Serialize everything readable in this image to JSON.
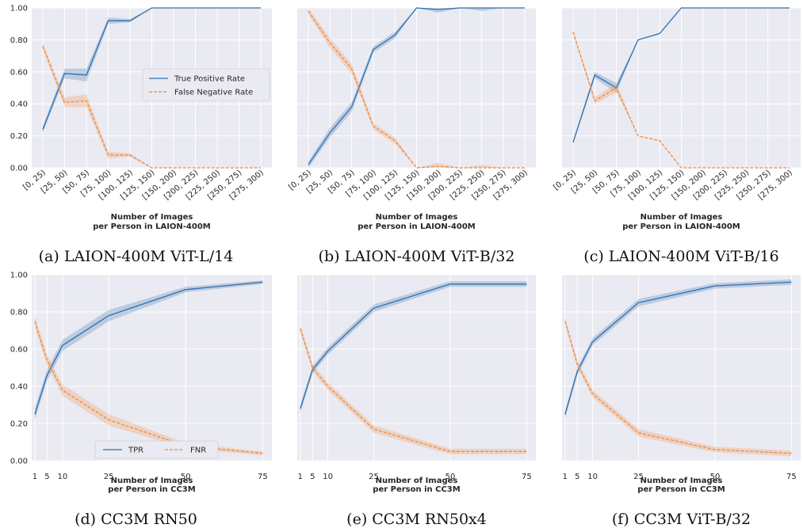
{
  "colors": {
    "tpr": "#2f6fad",
    "fnr": "#f08a3c",
    "panel_bg": "#eaeaf2",
    "grid": "#ffffff"
  },
  "chart_data": [
    {
      "type": "line",
      "caption": "(a) LAION-400M ViT-L/14",
      "xlabel": [
        "Number of Images",
        "per Person in LAION-400M"
      ],
      "x_axis": "categorical",
      "categories": [
        "[0, 25)",
        "[25, 50)",
        "[50, 75)",
        "[75, 100)",
        "[100, 125)",
        "[125, 150)",
        "[150, 200)",
        "[200, 225)",
        "[225, 250)",
        "[250, 275)",
        "[275, 300)"
      ],
      "ylim": [
        0,
        1
      ],
      "yticks": [
        "0.00",
        "0.20",
        "0.40",
        "0.60",
        "0.80",
        "1.00"
      ],
      "show_yticks": true,
      "grid": true,
      "legend": {
        "location": "center-right",
        "labels": [
          "True Positive Rate",
          "False Negative Rate"
        ]
      },
      "series": [
        {
          "name": "True Positive Rate",
          "style": "solid",
          "values": [
            0.24,
            0.59,
            0.58,
            0.92,
            0.92,
            1.0,
            1.0,
            1.0,
            1.0,
            1.0,
            1.0
          ],
          "band": [
            0.02,
            0.03,
            0.04,
            0.02,
            0.01,
            0.0,
            0.0,
            0.0,
            0.0,
            0.0,
            0.0
          ]
        },
        {
          "name": "False Negative Rate",
          "style": "dashed",
          "values": [
            0.76,
            0.41,
            0.42,
            0.08,
            0.08,
            0.0,
            0.0,
            0.0,
            0.0,
            0.0,
            0.0
          ],
          "band": [
            0.02,
            0.03,
            0.04,
            0.02,
            0.01,
            0.0,
            0.0,
            0.0,
            0.0,
            0.0,
            0.0
          ]
        }
      ]
    },
    {
      "type": "line",
      "caption": "(b) LAION-400M ViT-B/32",
      "xlabel": [
        "Number of Images",
        "per Person in LAION-400M"
      ],
      "x_axis": "categorical",
      "categories": [
        "[0, 25)",
        "[25, 50)",
        "[50, 75)",
        "[75, 100)",
        "[100, 125)",
        "[125, 150)",
        "[150, 200)",
        "[200, 225)",
        "[225, 250)",
        "[250, 275)",
        "[275, 300)"
      ],
      "ylim": [
        0,
        1
      ],
      "yticks": [
        "0.00",
        "0.20",
        "0.40",
        "0.60",
        "0.80",
        "1.00"
      ],
      "show_yticks": false,
      "grid": true,
      "series": [
        {
          "name": "True Positive Rate",
          "style": "solid",
          "values": [
            0.02,
            0.22,
            0.38,
            0.74,
            0.83,
            1.0,
            0.99,
            1.0,
            1.0,
            1.0,
            1.0
          ],
          "band": [
            0.02,
            0.03,
            0.03,
            0.02,
            0.02,
            0.0,
            0.02,
            0.0,
            0.02,
            0.0,
            0.0
          ]
        },
        {
          "name": "False Negative Rate",
          "style": "dashed",
          "values": [
            0.98,
            0.78,
            0.62,
            0.26,
            0.17,
            0.0,
            0.01,
            0.0,
            0.0,
            0.0,
            0.0
          ],
          "band": [
            0.02,
            0.03,
            0.03,
            0.02,
            0.02,
            0.0,
            0.02,
            0.0,
            0.02,
            0.0,
            0.0
          ]
        }
      ]
    },
    {
      "type": "line",
      "caption": "(c) LAION-400M ViT-B/16",
      "xlabel": [
        "Number of Images",
        "per Person in LAION-400M"
      ],
      "x_axis": "categorical",
      "categories": [
        "[0, 25)",
        "[25, 50)",
        "[50, 75)",
        "[75, 100)",
        "[100, 125)",
        "[125, 150)",
        "[150, 200)",
        "[200, 225)",
        "[225, 250)",
        "[250, 275)",
        "[275, 300)"
      ],
      "ylim": [
        0,
        1
      ],
      "yticks": [
        "0.00",
        "0.20",
        "0.40",
        "0.60",
        "0.80",
        "1.00"
      ],
      "show_yticks": false,
      "grid": true,
      "series": [
        {
          "name": "True Positive Rate",
          "style": "solid",
          "values": [
            0.16,
            0.58,
            0.5,
            0.8,
            0.84,
            1.0,
            1.0,
            1.0,
            1.0,
            1.0,
            1.0
          ],
          "band": [
            0.01,
            0.02,
            0.03,
            0.0,
            0.0,
            0.0,
            0.0,
            0.0,
            0.0,
            0.0,
            0.0
          ]
        },
        {
          "name": "False Negative Rate",
          "style": "dashed",
          "values": [
            0.85,
            0.42,
            0.5,
            0.2,
            0.17,
            0.0,
            0.0,
            0.0,
            0.0,
            0.0,
            0.0
          ],
          "band": [
            0.01,
            0.02,
            0.03,
            0.0,
            0.0,
            0.0,
            0.0,
            0.0,
            0.0,
            0.0,
            0.0
          ]
        }
      ]
    },
    {
      "type": "line",
      "caption": "(d) CC3M RN50",
      "xlabel": [
        "Number of Images",
        "per Person in CC3M"
      ],
      "x_axis": "numeric",
      "xticks": [
        1,
        5,
        10,
        25,
        50,
        75
      ],
      "xlim": [
        0,
        78
      ],
      "ylim": [
        0,
        1
      ],
      "yticks": [
        "0.00",
        "0.20",
        "0.40",
        "0.60",
        "0.80",
        "1.00"
      ],
      "show_yticks": true,
      "grid": true,
      "legend": {
        "location": "lower-left",
        "labels": [
          "TPR",
          "FNR"
        ]
      },
      "series": [
        {
          "name": "TPR",
          "style": "solid",
          "x": [
            1,
            5,
            10,
            25,
            50,
            75
          ],
          "values": [
            0.25,
            0.46,
            0.62,
            0.78,
            0.92,
            0.96
          ],
          "band": [
            0.03,
            0.03,
            0.03,
            0.03,
            0.015,
            0.01
          ]
        },
        {
          "name": "FNR",
          "style": "dashed",
          "x": [
            1,
            5,
            10,
            25,
            50,
            75
          ],
          "values": [
            0.75,
            0.54,
            0.38,
            0.22,
            0.08,
            0.04
          ],
          "band": [
            0.03,
            0.03,
            0.03,
            0.03,
            0.015,
            0.01
          ]
        }
      ]
    },
    {
      "type": "line",
      "caption": "(e) CC3M RN50x4",
      "xlabel": [
        "Number of Images",
        "per Person in CC3M"
      ],
      "x_axis": "numeric",
      "xticks": [
        1,
        5,
        10,
        25,
        50,
        75
      ],
      "xlim": [
        0,
        78
      ],
      "ylim": [
        0,
        1
      ],
      "yticks": [
        "0.00",
        "0.20",
        "0.40",
        "0.60",
        "0.80",
        "1.00"
      ],
      "show_yticks": false,
      "grid": true,
      "series": [
        {
          "name": "TPR",
          "style": "solid",
          "x": [
            1,
            5,
            10,
            25,
            50,
            75
          ],
          "values": [
            0.28,
            0.49,
            0.59,
            0.82,
            0.95,
            0.95
          ],
          "band": [
            0.02,
            0.02,
            0.02,
            0.02,
            0.015,
            0.015
          ]
        },
        {
          "name": "FNR",
          "style": "dashed",
          "x": [
            1,
            5,
            10,
            25,
            50,
            75
          ],
          "values": [
            0.71,
            0.5,
            0.4,
            0.17,
            0.05,
            0.05
          ],
          "band": [
            0.02,
            0.02,
            0.02,
            0.02,
            0.015,
            0.015
          ]
        }
      ]
    },
    {
      "type": "line",
      "caption": "(f) CC3M ViT-B/32",
      "xlabel": [
        "Number of Images",
        "per Person in CC3M"
      ],
      "x_axis": "numeric",
      "xticks": [
        1,
        5,
        10,
        25,
        50,
        75
      ],
      "xlim": [
        0,
        78
      ],
      "ylim": [
        0,
        1
      ],
      "yticks": [
        "0.00",
        "0.20",
        "0.40",
        "0.60",
        "0.80",
        "1.00"
      ],
      "show_yticks": false,
      "grid": true,
      "series": [
        {
          "name": "TPR",
          "style": "solid",
          "x": [
            1,
            5,
            10,
            25,
            50,
            75
          ],
          "values": [
            0.25,
            0.48,
            0.64,
            0.85,
            0.94,
            0.96
          ],
          "band": [
            0.02,
            0.02,
            0.02,
            0.02,
            0.015,
            0.015
          ]
        },
        {
          "name": "FNR",
          "style": "dashed",
          "x": [
            1,
            5,
            10,
            25,
            50,
            75
          ],
          "values": [
            0.75,
            0.52,
            0.36,
            0.15,
            0.06,
            0.04
          ],
          "band": [
            0.02,
            0.02,
            0.02,
            0.02,
            0.015,
            0.015
          ]
        }
      ]
    }
  ]
}
